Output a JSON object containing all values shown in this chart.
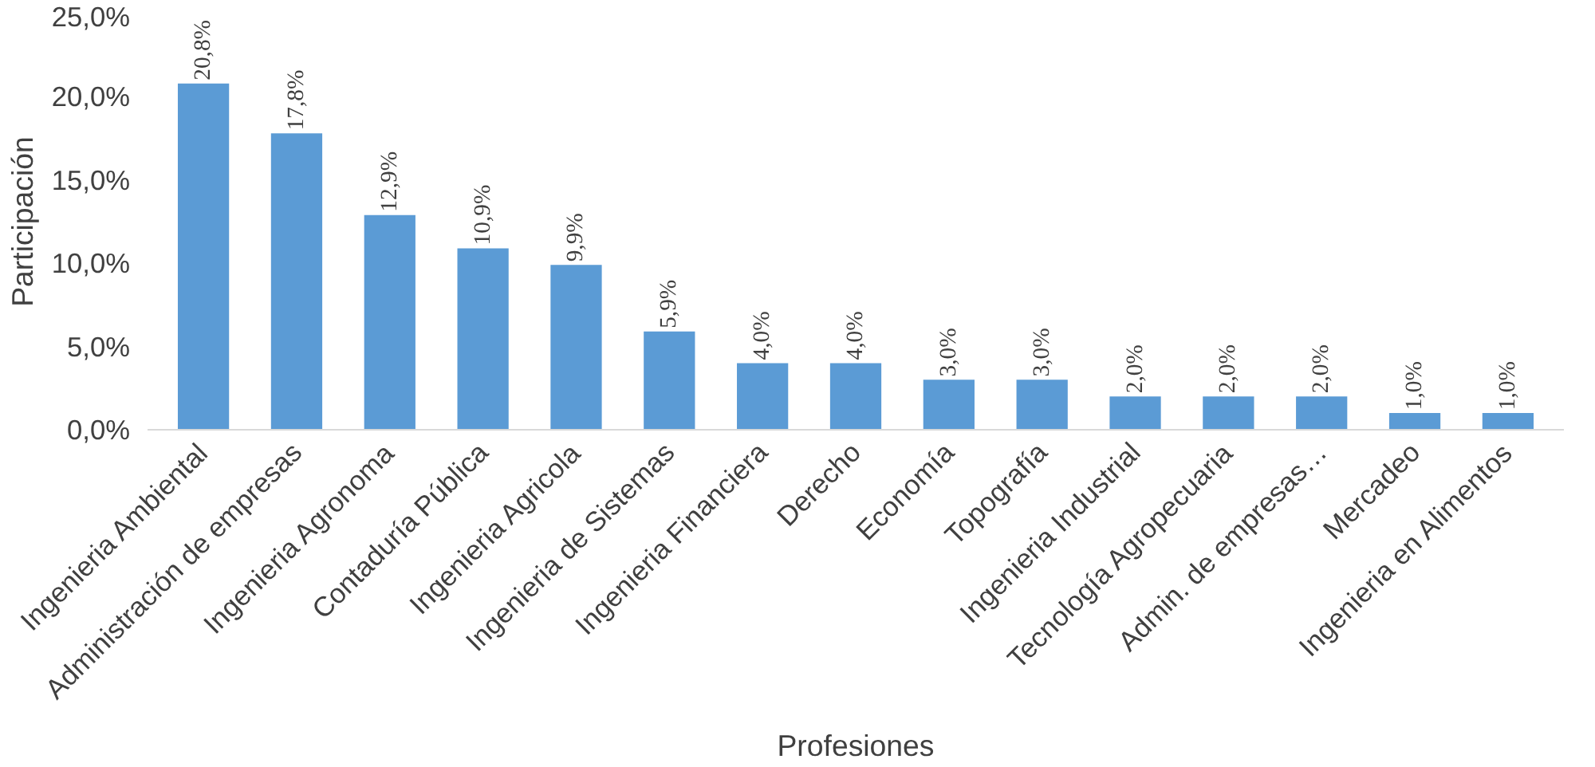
{
  "chart_data": {
    "type": "bar",
    "xlabel": "Profesiones",
    "ylabel": "Participación",
    "categories": [
      "Ingenieria Ambiental",
      "Administración de empresas",
      "Ingenieria Agronoma",
      "Contaduría Pública",
      "Ingenieria Agricola",
      "Ingenieria de Sistemas",
      "Ingenieria Financiera",
      "Derecho",
      "Economía",
      "Topografía",
      "Ingenieria Industrial",
      "Tecnología Agropecuaria",
      "Admin. de empresas…",
      "Mercadeo",
      "Ingenieria en Alimentos"
    ],
    "values": [
      20.8,
      17.8,
      12.9,
      10.9,
      9.9,
      5.9,
      4.0,
      4.0,
      3.0,
      3.0,
      2.0,
      2.0,
      2.0,
      1.0,
      1.0
    ],
    "value_labels": [
      "20,8%",
      "17,8%",
      "12,9%",
      "10,9%",
      "9,9%",
      "5,9%",
      "4,0%",
      "4,0%",
      "3,0%",
      "3,0%",
      "2,0%",
      "2,0%",
      "2,0%",
      "1,0%",
      "1,0%"
    ],
    "color": "#5b9bd5",
    "ylim": [
      0,
      25
    ],
    "yticks": [
      {
        "value": 0,
        "label": "0,0%"
      },
      {
        "value": 5,
        "label": "5,0%"
      },
      {
        "value": 10,
        "label": "10,0%"
      },
      {
        "value": 15,
        "label": "15,0%"
      },
      {
        "value": 20,
        "label": "20,0%"
      },
      {
        "value": 25,
        "label": "25,0%"
      }
    ],
    "grid": false
  }
}
